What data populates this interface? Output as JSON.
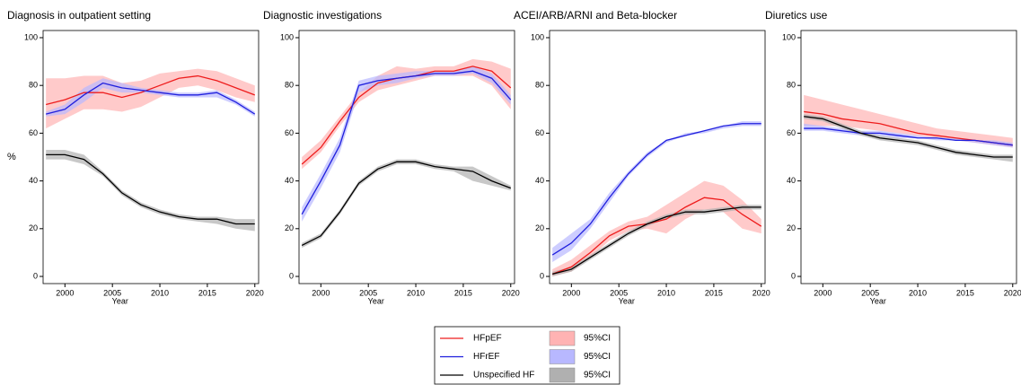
{
  "chart_data": [
    {
      "type": "line",
      "title": "Diagnosis in outpatient setting",
      "ylabel": "%",
      "xlabel": "Year",
      "x": [
        1998,
        2000,
        2002,
        2004,
        2006,
        2008,
        2010,
        2012,
        2014,
        2016,
        2018,
        2020
      ],
      "xlim": [
        1997.7,
        2020.4
      ],
      "xticks": [
        2000,
        2005,
        2010,
        2015,
        2020
      ],
      "ylim": [
        -3,
        103
      ],
      "yticks": [
        0,
        20,
        40,
        60,
        80,
        100
      ],
      "series": [
        {
          "name": "HFpEF",
          "color": "#ee1c1c",
          "band_name": "95%CI",
          "band_color": "#ffb3b3",
          "values": [
            72,
            74,
            77,
            77,
            75,
            77,
            80,
            83,
            84,
            82,
            79,
            76
          ],
          "lower": [
            62,
            66,
            70,
            70,
            69,
            71,
            75,
            79,
            80,
            78,
            75,
            73
          ],
          "upper": [
            83,
            83,
            84,
            84,
            81,
            82,
            85,
            86,
            87,
            86,
            83,
            80
          ]
        },
        {
          "name": "HFrEF",
          "color": "#1f1fdd",
          "band_name": "95%CI",
          "band_color": "#b8b8ff",
          "values": [
            68,
            70,
            76,
            81,
            79,
            78,
            77,
            76,
            76,
            77,
            73,
            68
          ],
          "lower": [
            67,
            68,
            73,
            79,
            77,
            77,
            76,
            75,
            75,
            75,
            72,
            67
          ],
          "upper": [
            69,
            72,
            79,
            83,
            81,
            79,
            78,
            77,
            77,
            78,
            74,
            69
          ]
        },
        {
          "name": "Unspecified HF",
          "color": "#000000",
          "band_name": "95%CI",
          "band_color": "#b0b0b0",
          "values": [
            51,
            51,
            49,
            43,
            35,
            30,
            27,
            25,
            24,
            24,
            22,
            22
          ],
          "lower": [
            49,
            49,
            47,
            42,
            34,
            29,
            26,
            24,
            23,
            22,
            20,
            19
          ],
          "upper": [
            53,
            53,
            51,
            44,
            36,
            31,
            28,
            26,
            25,
            25,
            24,
            24
          ]
        }
      ]
    },
    {
      "type": "line",
      "title": "Diagnostic investigations",
      "xlabel": "Year",
      "x": [
        1998,
        2000,
        2002,
        2004,
        2006,
        2008,
        2010,
        2012,
        2014,
        2016,
        2018,
        2020
      ],
      "xlim": [
        1997.7,
        2020.4
      ],
      "xticks": [
        2000,
        2005,
        2010,
        2015,
        2020
      ],
      "ylim": [
        -3,
        103
      ],
      "yticks": [
        0,
        20,
        40,
        60,
        80,
        100
      ],
      "series": [
        {
          "name": "HFpEF",
          "color": "#ee1c1c",
          "band_color": "#ffb3b3",
          "values": [
            47,
            54,
            65,
            75,
            81,
            83,
            84,
            86,
            86,
            88,
            86,
            79
          ],
          "lower": [
            45,
            52,
            63,
            73,
            78,
            80,
            82,
            84,
            84,
            84,
            80,
            70
          ],
          "upper": [
            50,
            57,
            67,
            77,
            84,
            88,
            87,
            88,
            88,
            91,
            90,
            87
          ]
        },
        {
          "name": "HFrEF",
          "color": "#1f1fdd",
          "band_color": "#b8b8ff",
          "values": [
            26,
            40,
            55,
            80,
            82,
            83,
            84,
            85,
            85,
            86,
            83,
            74
          ],
          "lower": [
            23,
            37,
            52,
            77,
            80,
            81,
            83,
            84,
            84,
            85,
            81,
            72
          ],
          "upper": [
            29,
            43,
            58,
            82,
            84,
            85,
            86,
            86,
            86,
            88,
            85,
            76
          ]
        },
        {
          "name": "Unspecified HF",
          "color": "#000000",
          "band_color": "#b0b0b0",
          "values": [
            13,
            17,
            27,
            39,
            45,
            48,
            48,
            46,
            45,
            44,
            40,
            37
          ],
          "lower": [
            12,
            16,
            26,
            38,
            44,
            47,
            47,
            45,
            44,
            40,
            38,
            36
          ],
          "upper": [
            14,
            18,
            28,
            40,
            46,
            49,
            49,
            47,
            46,
            46,
            42,
            38
          ]
        }
      ]
    },
    {
      "type": "line",
      "title": "ACEI/ARB/ARNI and Beta-blocker",
      "xlabel": "Year",
      "x": [
        1998,
        2000,
        2002,
        2004,
        2006,
        2008,
        2010,
        2012,
        2014,
        2016,
        2018,
        2020
      ],
      "xlim": [
        1997.7,
        2020.4
      ],
      "xticks": [
        2000,
        2005,
        2010,
        2015,
        2020
      ],
      "ylim": [
        -3,
        103
      ],
      "yticks": [
        0,
        20,
        40,
        60,
        80,
        100
      ],
      "series": [
        {
          "name": "HFpEF",
          "color": "#ee1c1c",
          "band_color": "#ffb3b3",
          "values": [
            1,
            4,
            10,
            17,
            21,
            22,
            24,
            29,
            33,
            32,
            26,
            21
          ],
          "lower": [
            0,
            2,
            8,
            15,
            19,
            20,
            18,
            24,
            28,
            27,
            20,
            18
          ],
          "upper": [
            3,
            7,
            13,
            19,
            23,
            25,
            30,
            35,
            40,
            38,
            32,
            24
          ]
        },
        {
          "name": "HFrEF",
          "color": "#1f1fdd",
          "band_color": "#b8b8ff",
          "values": [
            9,
            14,
            22,
            33,
            43,
            51,
            57,
            59,
            61,
            63,
            64,
            64
          ],
          "lower": [
            6,
            11,
            20,
            31,
            42,
            50,
            56,
            59,
            60,
            62,
            63,
            63
          ],
          "upper": [
            12,
            18,
            24,
            35,
            44,
            52,
            57,
            60,
            61,
            63,
            65,
            65
          ]
        },
        {
          "name": "Unspecified HF",
          "color": "#000000",
          "band_color": "#b0b0b0",
          "values": [
            1,
            3,
            8,
            13,
            18,
            22,
            25,
            27,
            27,
            28,
            29,
            29
          ],
          "lower": [
            0,
            2,
            7,
            12,
            17,
            21,
            24,
            26,
            26,
            27,
            28,
            28
          ],
          "upper": [
            2,
            4,
            9,
            14,
            19,
            23,
            26,
            28,
            28,
            29,
            30,
            30
          ]
        }
      ]
    },
    {
      "type": "line",
      "title": "Diuretics use",
      "xlabel": "Year",
      "x": [
        1998,
        2000,
        2002,
        2004,
        2006,
        2008,
        2010,
        2012,
        2014,
        2016,
        2018,
        2020
      ],
      "xlim": [
        1997.7,
        2020.4
      ],
      "xticks": [
        2000,
        2005,
        2010,
        2015,
        2020
      ],
      "ylim": [
        -3,
        103
      ],
      "yticks": [
        0,
        20,
        40,
        60,
        80,
        100
      ],
      "series": [
        {
          "name": "HFpEF",
          "color": "#ee1c1c",
          "band_color": "#ffb3b3",
          "values": [
            69,
            68,
            66,
            65,
            64,
            62,
            60,
            59,
            58,
            57,
            56,
            55
          ],
          "lower": [
            63,
            63,
            63,
            62,
            61,
            60,
            59,
            58,
            57,
            56,
            55,
            54
          ],
          "upper": [
            76,
            74,
            72,
            70,
            68,
            66,
            64,
            62,
            61,
            60,
            59,
            58
          ]
        },
        {
          "name": "HFrEF",
          "color": "#1f1fdd",
          "band_color": "#b8b8ff",
          "values": [
            62,
            62,
            61,
            60,
            60,
            59,
            58,
            58,
            57,
            57,
            56,
            55
          ],
          "lower": [
            61,
            61,
            60,
            59,
            59,
            58,
            58,
            57,
            57,
            56,
            55,
            54
          ],
          "upper": [
            64,
            63,
            62,
            61,
            61,
            60,
            59,
            58,
            58,
            57,
            57,
            56
          ]
        },
        {
          "name": "Unspecified HF",
          "color": "#000000",
          "band_color": "#b0b0b0",
          "values": [
            67,
            66,
            63,
            60,
            58,
            57,
            56,
            54,
            52,
            51,
            50,
            50
          ],
          "lower": [
            66,
            65,
            62,
            59,
            57,
            56,
            55,
            53,
            51,
            50,
            49,
            48
          ],
          "upper": [
            68,
            67,
            64,
            61,
            59,
            58,
            57,
            55,
            53,
            52,
            51,
            51
          ]
        }
      ]
    }
  ]
}
